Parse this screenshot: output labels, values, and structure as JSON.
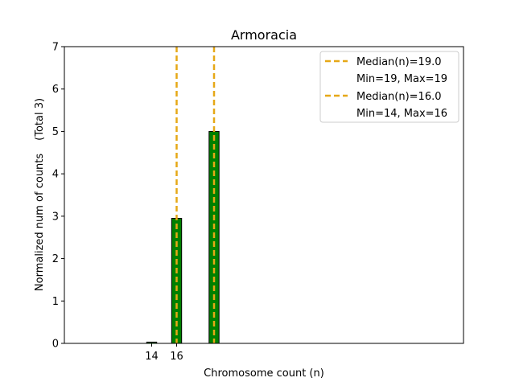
{
  "chart_data": {
    "type": "bar",
    "title": "Armoracia",
    "xlabel": "Chromosome count (n)",
    "ylabel": "Normalized num of counts",
    "ylabel_suffix": "(Total 3)",
    "xlim": [
      7,
      39
    ],
    "ylim": [
      0,
      7
    ],
    "x_ticks": [
      14,
      16
    ],
    "y_ticks": [
      0,
      1,
      2,
      3,
      4,
      5,
      6,
      7
    ],
    "bar_color": "#008000",
    "bar_edge_color": "#000000",
    "bar_width": 0.8,
    "bars": [
      {
        "x": 14,
        "value": 0.03
      },
      {
        "x": 16,
        "value": 2.95
      },
      {
        "x": 19,
        "value": 5.0
      }
    ],
    "baseline": {
      "from": 7,
      "to": 23
    },
    "median_lines": [
      {
        "x": 16,
        "color": "#E6A817"
      },
      {
        "x": 19,
        "color": "#E6A817"
      }
    ],
    "grid": false,
    "legend_position": "top-right",
    "legend": [
      {
        "label": "Median(n)=19.0",
        "detail": "Min=19, Max=19",
        "color": "#E6A817"
      },
      {
        "label": "Median(n)=16.0",
        "detail": "Min=14, Max=16",
        "color": "#E6A817"
      }
    ]
  }
}
